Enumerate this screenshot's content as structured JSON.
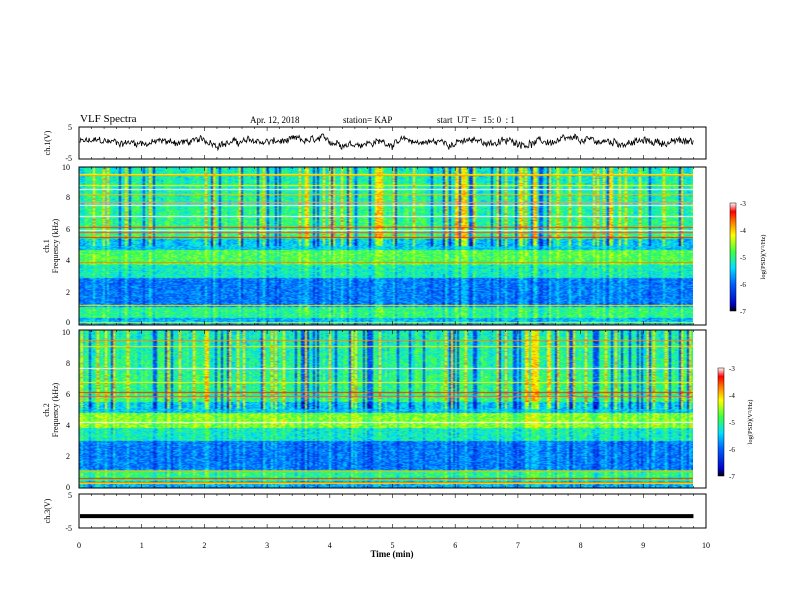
{
  "header": {
    "title": "VLF Spectra",
    "date": "Apr. 12, 2018",
    "station": "station= KAP",
    "start": "start  UT =   15: 0  : 1"
  },
  "chart_data": [
    {
      "type": "line",
      "name": "ch1-waveform",
      "ylabel": "ch.1(V)",
      "ylim": [
        -5,
        5
      ],
      "yticks": [
        "5",
        "-5"
      ],
      "xlim": [
        0,
        10
      ],
      "description_level": 0.3
    },
    {
      "type": "heatmap",
      "name": "ch1-spectrogram",
      "ylabel": "Frequency (kHz)",
      "channel_label": "ch.1",
      "ylim": [
        0,
        10
      ],
      "yticks": [
        "0",
        "2",
        "4",
        "6",
        "8",
        "10"
      ],
      "xlim": [
        0,
        10
      ],
      "data_extent_min": 9.8,
      "colorbar": {
        "label": "log(PSD)(V²/Hz)",
        "ticks": [
          "-3",
          "-4",
          "-5",
          "-6",
          "-7"
        ],
        "range": [
          -7,
          -3
        ]
      }
    },
    {
      "type": "heatmap",
      "name": "ch2-spectrogram",
      "ylabel": "Frequency (kHz)",
      "channel_label": "ch.2",
      "ylim": [
        0,
        10
      ],
      "yticks": [
        "0",
        "2",
        "4",
        "6",
        "8",
        "10"
      ],
      "xlim": [
        0,
        10
      ],
      "data_extent_min": 9.8,
      "colorbar": {
        "label": "log(PSD)(V²/Hz)",
        "ticks": [
          "-3",
          "-4",
          "-5",
          "-6",
          "-7"
        ],
        "range": [
          -7,
          -3
        ]
      }
    },
    {
      "type": "line",
      "name": "ch3-waveform",
      "ylabel": "ch.3(V)",
      "ylim": [
        -5,
        5
      ],
      "yticks": [
        "5",
        "-5"
      ],
      "xlim": [
        0,
        10
      ],
      "constant_value": -1.5
    }
  ],
  "xaxis": {
    "label": "Time (min)",
    "ticks": [
      "0",
      "1",
      "2",
      "3",
      "4",
      "5",
      "6",
      "7",
      "8",
      "9",
      "10"
    ]
  }
}
